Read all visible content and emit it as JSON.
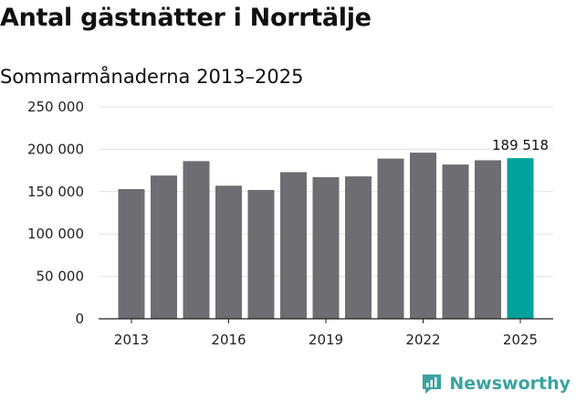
{
  "title": "Antal gästnätter i Norrtälje",
  "subtitle": "Sommarmånaderna 2013–2025",
  "brand": {
    "name": "Newsworthy",
    "icon": "newsworthy-logo-icon",
    "color": "#3aa3a0"
  },
  "chart_data": {
    "type": "bar",
    "title": "Antal gästnätter i Norrtälje",
    "subtitle": "Sommarmånaderna 2013–2025",
    "categories": [
      "2013",
      "2014",
      "2015",
      "2016",
      "2017",
      "2018",
      "2019",
      "2020",
      "2021",
      "2022",
      "2023",
      "2024",
      "2025"
    ],
    "values": [
      153000,
      169000,
      186000,
      157000,
      152000,
      173000,
      167000,
      168000,
      189000,
      196000,
      182000,
      187000,
      189518
    ],
    "x_tick_labels": [
      "2013",
      "2016",
      "2019",
      "2022",
      "2025"
    ],
    "y_tick_labels": [
      "0",
      "50 000",
      "100 000",
      "150 000",
      "200 000",
      "250 000"
    ],
    "ylim": [
      0,
      250000
    ],
    "highlight": {
      "category": "2025",
      "label": "189 518"
    },
    "grid": true,
    "colors": {
      "bar": "#6e6d72",
      "highlight": "#00a29a",
      "grid": "#e2e2e2",
      "axis": "#222222"
    }
  }
}
